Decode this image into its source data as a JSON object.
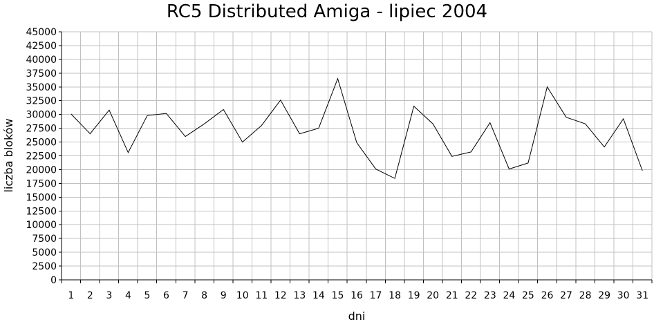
{
  "chart_data": {
    "type": "line",
    "title": "RC5 Distributed Amiga - lipiec 2004",
    "xlabel": "dni",
    "ylabel": "liczba bloków",
    "ylim": [
      0,
      45000
    ],
    "ytick_step": 2500,
    "grid": true,
    "legend": "none",
    "line_color": "#000000",
    "grid_color": "#c0c0c0",
    "x": [
      1,
      2,
      3,
      4,
      5,
      6,
      7,
      8,
      9,
      10,
      11,
      12,
      13,
      14,
      15,
      16,
      17,
      18,
      19,
      20,
      21,
      22,
      23,
      24,
      25,
      26,
      27,
      28,
      29,
      30,
      31
    ],
    "y": [
      30100,
      26500,
      30800,
      23100,
      29800,
      30200,
      26000,
      28300,
      30900,
      25000,
      28000,
      32600,
      26500,
      27500,
      36500,
      24900,
      20100,
      18400,
      31500,
      28300,
      22400,
      23200,
      28500,
      20100,
      21200,
      35000,
      29500,
      28300,
      24100,
      29200,
      19800
    ]
  }
}
